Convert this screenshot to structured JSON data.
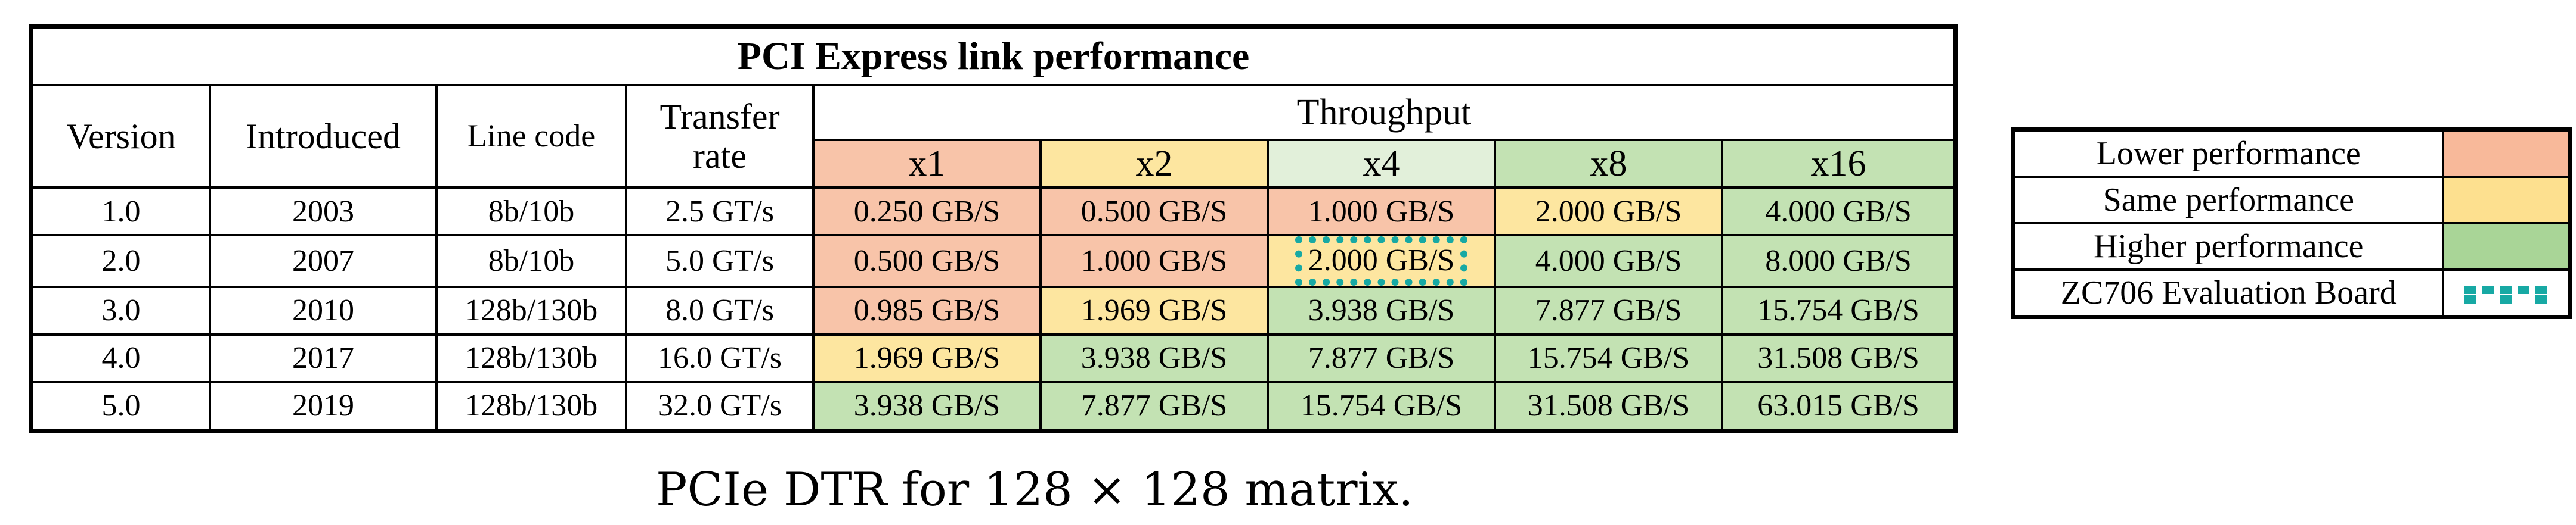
{
  "table": {
    "title": "PCI Express link performance",
    "headers": {
      "version": "Version",
      "introduced": "Introduced",
      "line_code": "Line code",
      "transfer_rate_line1": "Transfer",
      "transfer_rate_line2": "rate",
      "throughput": "Throughput",
      "lanes": [
        "x1",
        "x2",
        "x4",
        "x8",
        "x16"
      ]
    },
    "rows": [
      {
        "version": "1.0",
        "introduced": "2003",
        "line_code": "8b/10b",
        "transfer_rate": "2.5 GT/s",
        "throughput": [
          "0.250 GB/S",
          "0.500 GB/S",
          "1.000 GB/S",
          "2.000 GB/S",
          "4.000 GB/S"
        ],
        "levels": [
          "lower",
          "lower",
          "lower",
          "same",
          "higher"
        ]
      },
      {
        "version": "2.0",
        "introduced": "2007",
        "line_code": "8b/10b",
        "transfer_rate": "5.0 GT/s",
        "throughput": [
          "0.500 GB/S",
          "1.000 GB/S",
          "2.000 GB/S",
          "4.000 GB/S",
          "8.000 GB/S"
        ],
        "levels": [
          "lower",
          "lower",
          "same",
          "higher",
          "higher"
        ]
      },
      {
        "version": "3.0",
        "introduced": "2010",
        "line_code": "128b/130b",
        "transfer_rate": "8.0 GT/s",
        "throughput": [
          "0.985 GB/S",
          "1.969 GB/S",
          "3.938 GB/S",
          "7.877 GB/S",
          "15.754 GB/S"
        ],
        "levels": [
          "lower",
          "same",
          "higher",
          "higher",
          "higher"
        ]
      },
      {
        "version": "4.0",
        "introduced": "2017",
        "line_code": "128b/130b",
        "transfer_rate": "16.0 GT/s",
        "throughput": [
          "1.969 GB/S",
          "3.938 GB/S",
          "7.877 GB/S",
          "15.754 GB/S",
          "31.508 GB/S"
        ],
        "levels": [
          "same",
          "higher",
          "higher",
          "higher",
          "higher"
        ]
      },
      {
        "version": "5.0",
        "introduced": "2019",
        "line_code": "128b/130b",
        "transfer_rate": "32.0 GT/s",
        "throughput": [
          "3.938 GB/S",
          "7.877 GB/S",
          "15.754 GB/S",
          "31.508 GB/S",
          "63.015 GB/S"
        ],
        "levels": [
          "higher",
          "higher",
          "higher",
          "higher",
          "higher"
        ]
      }
    ],
    "highlighted_cell": {
      "row": 1,
      "lane": 2
    }
  },
  "legend": {
    "items": [
      {
        "label": "Lower performance",
        "level": "lower"
      },
      {
        "label": "Same performance",
        "level": "same"
      },
      {
        "label": "Higher performance",
        "level": "higher"
      },
      {
        "label": "ZC706 Evaluation Board",
        "level": "board"
      }
    ]
  },
  "colors": {
    "lower": "#f8c4a9",
    "same": "#fde6a0",
    "higher": "#c3e2b3",
    "board_marker": "#17a9a4"
  },
  "caption": "PCIe DTR for 128 × 128 matrix."
}
